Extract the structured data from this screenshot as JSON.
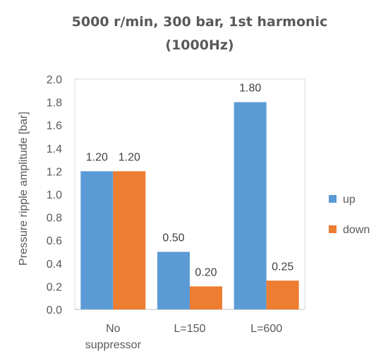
{
  "chart_data": {
    "type": "bar",
    "title": [
      "5000 r/min, 300 bar, 1st harmonic",
      "(1000Hz)"
    ],
    "categories": [
      [
        "No",
        "suppressor"
      ],
      [
        "L=150"
      ],
      [
        "L=600"
      ]
    ],
    "series": [
      {
        "name": "up",
        "color": "#5B9BD5",
        "values": [
          1.2,
          0.5,
          1.8
        ],
        "labels": [
          "1.20",
          "0.50",
          "1.80"
        ]
      },
      {
        "name": "down",
        "color": "#ED7D31",
        "values": [
          1.2,
          0.2,
          0.25
        ],
        "labels": [
          "1.20",
          "0.20",
          "0.25"
        ]
      }
    ],
    "ylabel": "Pressure ripple amplitude [bar]",
    "xlabel": "",
    "ylim": [
      0,
      2.0
    ],
    "ytick_step": 0.2,
    "ytick_labels": [
      "0.0",
      "0.2",
      "0.4",
      "0.6",
      "0.8",
      "1.0",
      "1.2",
      "1.4",
      "1.6",
      "1.8",
      "2.0"
    ],
    "grid": false,
    "legend_position": "right"
  }
}
